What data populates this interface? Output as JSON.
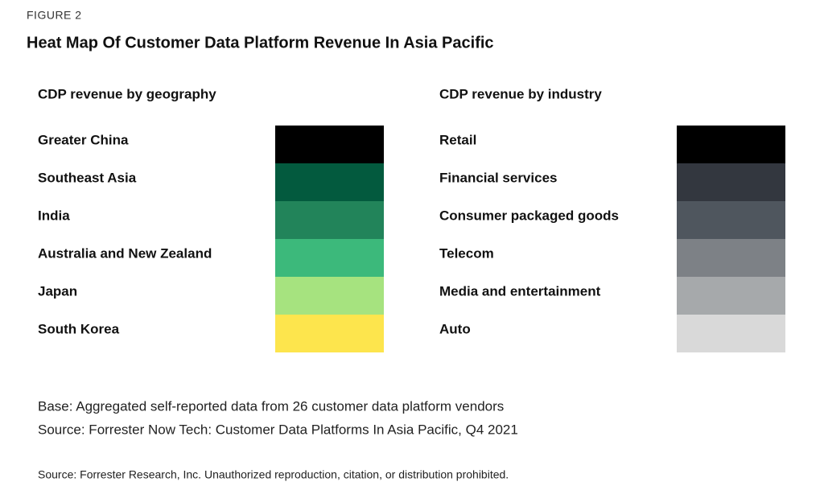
{
  "figure_label": "FIGURE  2",
  "title": "Heat Map Of Customer Data Platform Revenue In Asia Pacific",
  "panels": [
    {
      "heading": "CDP revenue by geography",
      "rows": [
        {
          "label": "Greater China",
          "color": "#000000"
        },
        {
          "label": "Southeast Asia",
          "color": "#035a3e"
        },
        {
          "label": "India",
          "color": "#22845a"
        },
        {
          "label": "Australia and New Zealand",
          "color": "#3cb97b"
        },
        {
          "label": "Japan",
          "color": "#a6e37f"
        },
        {
          "label": "South Korea",
          "color": "#fde54d"
        }
      ]
    },
    {
      "heading": "CDP revenue by industry",
      "rows": [
        {
          "label": "Retail",
          "color": "#000000"
        },
        {
          "label": "Financial services",
          "color": "#33373f"
        },
        {
          "label": "Consumer packaged goods",
          "color": "#4f565e"
        },
        {
          "label": "Telecom",
          "color": "#7d8186"
        },
        {
          "label": "Media and entertainment",
          "color": "#a6a9ab"
        },
        {
          "label": "Auto",
          "color": "#d9d9d9"
        }
      ]
    }
  ],
  "notes": [
    "Base: Aggregated self-reported data from 26 customer data platform vendors",
    "Source: Forrester Now Tech: Customer Data Platforms In Asia Pacific, Q4 2021"
  ],
  "footer": "Source: Forrester Research, Inc. Unauthorized reproduction, citation, or distribution prohibited."
}
